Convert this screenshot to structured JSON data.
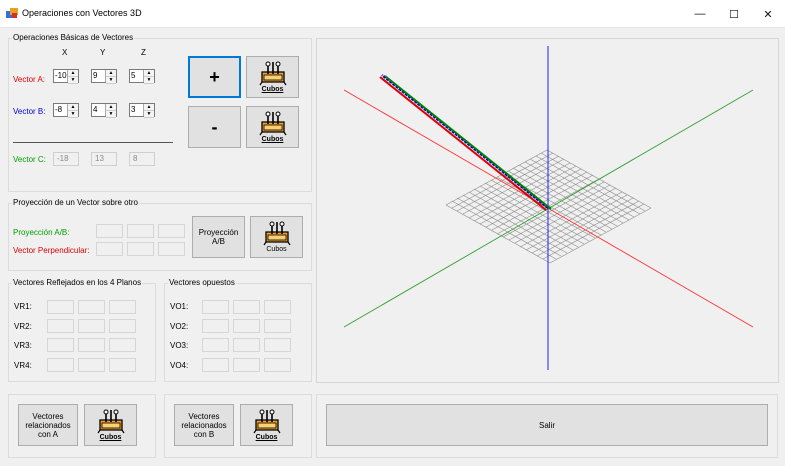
{
  "window": {
    "title": "Operaciones con Vectores 3D",
    "minimize": "—",
    "maximize": "☐",
    "close": "✕"
  },
  "basic": {
    "group_label": "Operaciones Básicas de Vectores",
    "headers": [
      "X",
      "Y",
      "Z"
    ],
    "vector_a": {
      "label": "Vector A:",
      "values": [
        "-10",
        "9",
        "5"
      ]
    },
    "vector_b": {
      "label": "Vector B:",
      "values": [
        "-8",
        "4",
        "3"
      ]
    },
    "vector_c": {
      "label": "Vector C:",
      "values": [
        "-18",
        "13",
        "8"
      ]
    },
    "add_label": "+",
    "sub_label": "-",
    "cubos_label": "Cubos"
  },
  "projection": {
    "group_label": "Proyección de un Vector sobre otro",
    "proj_label": "Proyección A/B:",
    "perp_label": "Vector Perpendicular:",
    "button_label_1": "Proyección",
    "button_label_2": "A/B",
    "cubos_label": "Cubos"
  },
  "reflected": {
    "group_label": "Vectores Reflejados en los 4 Planos",
    "rows": [
      "VR1:",
      "VR2:",
      "VR3:",
      "VR4:"
    ]
  },
  "opposite": {
    "group_label": "Vectores opuestos",
    "rows": [
      "VO1:",
      "VO2:",
      "VO3:",
      "VO4:"
    ]
  },
  "related_a": {
    "label_1": "Vectores",
    "label_2": "relacionados",
    "label_3": "con A",
    "cubos_label": "Cubos"
  },
  "related_b": {
    "label_1": "Vectores",
    "label_2": "relacionados",
    "label_3": "con B",
    "cubos_label": "Cubos"
  },
  "exit_label": "Salir",
  "colors": {
    "vector_a": "#e00000",
    "vector_b": "#0000d0",
    "vector_c": "#00a000",
    "focus": "#0078d7"
  },
  "icons": [
    "app-icon",
    "cubes-icon",
    "minimize-icon",
    "maximize-icon",
    "close-icon"
  ]
}
